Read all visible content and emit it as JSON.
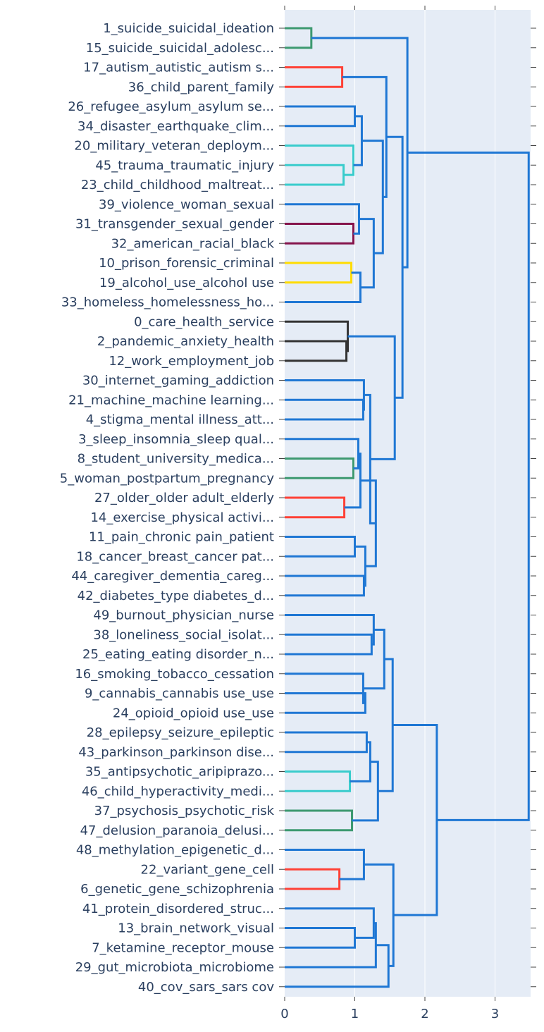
{
  "chart_data": {
    "type": "dendrogram",
    "orientation": "horizontal",
    "xlim": [
      0,
      3.5
    ],
    "x_ticks": [
      0,
      1,
      2,
      3
    ],
    "x_tick_labels": [
      "0",
      "1",
      "2",
      "3"
    ],
    "plot_background": "#e5ecf6",
    "leaves": [
      "1_suicide_suicidal_ideation",
      "15_suicide_suicidal_adolesc...",
      "17_autism_autistic_autism s...",
      "36_child_parent_family",
      "26_refugee_asylum_asylum se...",
      "34_disaster_earthquake_clim...",
      "20_military_veteran_deploym...",
      "45_trauma_traumatic_injury",
      "23_child_childhood_maltreat...",
      "39_violence_woman_sexual",
      "31_transgender_sexual_gender",
      "32_american_racial_black",
      "10_prison_forensic_criminal",
      "19_alcohol_use_alcohol use",
      "33_homeless_homelessness_ho...",
      "0_care_health_service",
      "2_pandemic_anxiety_health",
      "12_work_employment_job",
      "30_internet_gaming_addiction",
      "21_machine_machine learning...",
      "4_stigma_mental illness_att...",
      "3_sleep_insomnia_sleep qual...",
      "8_student_university_medica...",
      "5_woman_postpartum_pregnancy",
      "27_older_older adult_elderly",
      "14_exercise_physical activi...",
      "11_pain_chronic pain_patient",
      "18_cancer_breast_cancer pat...",
      "44_caregiver_dementia_careg...",
      "42_diabetes_type diabetes_d...",
      "49_burnout_physician_nurse",
      "38_loneliness_social_isolat...",
      "25_eating_eating disorder_n...",
      "16_smoking_tobacco_cessation",
      "9_cannabis_cannabis use_use",
      "24_opioid_opioid use_use",
      "28_epilepsy_seizure_epileptic",
      "43_parkinson_parkinson dise...",
      "35_antipsychotic_aripiprazo...",
      "46_child_hyperactivity_medi...",
      "37_psychosis_psychotic_risk",
      "47_delusion_paranoia_delusi...",
      "48_methylation_epigenetic_d...",
      "22_variant_gene_cell",
      "6_genetic_gene_schizophrenia",
      "41_protein_disordered_struc...",
      "13_brain_network_visual",
      "7_ketamine_receptor_mouse",
      "29_gut_microbiota_microbiome",
      "40_cov_sars_sars cov"
    ],
    "colors": {
      "blue": "#1f77d4",
      "green": "#3d9970",
      "red": "#ff4136",
      "cyan": "#39cccc",
      "maroon": "#85144b",
      "yellow": "#ffdc00",
      "black": "#333333"
    },
    "links": [
      {
        "a": 0,
        "b": 1,
        "h": 0.38,
        "c": "green"
      },
      {
        "a": 2,
        "b": 3,
        "h": 0.82,
        "c": "red"
      },
      {
        "a": 4,
        "b": 5,
        "h": 1.0,
        "c": "blue"
      },
      {
        "a": 7,
        "b": 8,
        "h": 0.84,
        "c": "cyan"
      },
      {
        "a": 6,
        "b": 7.5,
        "b_h": 0.84,
        "h": 0.98,
        "c": "cyan"
      },
      {
        "a": 4.5,
        "a_h": 1.0,
        "b": 7.0,
        "b_h": 0.98,
        "h": 1.1,
        "c": "blue"
      },
      {
        "a": 10,
        "b": 11,
        "h": 0.98,
        "c": "maroon"
      },
      {
        "a": 9,
        "b": 10.5,
        "b_h": 0.98,
        "h": 1.06,
        "c": "blue"
      },
      {
        "a": 12,
        "b": 13,
        "h": 0.95,
        "c": "yellow"
      },
      {
        "a": 12.5,
        "a_h": 0.95,
        "b": 14,
        "h": 1.08,
        "c": "blue"
      },
      {
        "a": 9.75,
        "a_h": 1.06,
        "b": 13.25,
        "b_h": 1.08,
        "h": 1.27,
        "c": "blue"
      },
      {
        "a": 5.75,
        "a_h": 1.1,
        "b": 11.5,
        "b_h": 1.27,
        "h": 1.4,
        "c": "blue"
      },
      {
        "a": 2.5,
        "a_h": 0.82,
        "b": 8.625,
        "b_h": 1.4,
        "h": 1.45,
        "c": "blue"
      },
      {
        "a": 16,
        "b": 17,
        "h": 0.88,
        "c": "black"
      },
      {
        "a": 15,
        "b": 16.5,
        "b_h": 0.88,
        "h": 0.9,
        "c": "black"
      },
      {
        "a": 19,
        "b": 20,
        "h": 1.12,
        "c": "blue"
      },
      {
        "a": 18,
        "b": 19.5,
        "b_h": 1.12,
        "h": 1.13,
        "c": "blue"
      },
      {
        "a": 22,
        "b": 23,
        "h": 0.98,
        "c": "green"
      },
      {
        "a": 21,
        "b": 22.5,
        "b_h": 0.98,
        "h": 1.05,
        "c": "blue"
      },
      {
        "a": 24,
        "b": 25,
        "h": 0.85,
        "c": "red"
      },
      {
        "a": 21.75,
        "a_h": 1.05,
        "b": 24.5,
        "b_h": 0.85,
        "h": 1.08,
        "c": "blue"
      },
      {
        "a": 26,
        "b": 27,
        "h": 1.0,
        "c": "blue"
      },
      {
        "a": 28,
        "b": 29,
        "h": 1.13,
        "c": "blue"
      },
      {
        "a": 26.5,
        "a_h": 1.0,
        "b": 28.5,
        "b_h": 1.13,
        "h": 1.15,
        "c": "blue"
      },
      {
        "a": 23.125,
        "a_h": 1.08,
        "b": 27.5,
        "b_h": 1.15,
        "h": 1.3,
        "c": "blue"
      },
      {
        "a": 18.75,
        "a_h": 1.13,
        "b": 25.3125,
        "b_h": 1.3,
        "h": 1.22,
        "c": "blue"
      },
      {
        "a": 15.75,
        "a_h": 0.9,
        "b": 22.03,
        "b_h": 1.22,
        "h": 1.57,
        "c": "blue"
      },
      {
        "a": 5.56,
        "a_h": 1.45,
        "b": 18.89,
        "b_h": 1.57,
        "h": 1.68,
        "c": "blue"
      },
      {
        "a": 0.5,
        "a_h": 0.38,
        "b": 12.22,
        "b_h": 1.68,
        "h": 1.75,
        "c": "blue"
      },
      {
        "a": 31,
        "b": 32,
        "h": 1.24,
        "c": "blue"
      },
      {
        "a": 30,
        "b": 31.5,
        "b_h": 1.24,
        "h": 1.27,
        "c": "blue"
      },
      {
        "a": 34,
        "b": 35,
        "h": 1.15,
        "c": "blue"
      },
      {
        "a": 33,
        "b": 34.5,
        "b_h": 1.15,
        "h": 1.12,
        "c": "blue"
      },
      {
        "a": 30.75,
        "a_h": 1.27,
        "b": 33.75,
        "b_h": 1.12,
        "h": 1.42,
        "c": "blue"
      },
      {
        "a": 36,
        "b": 37,
        "h": 1.17,
        "c": "blue"
      },
      {
        "a": 38,
        "b": 39,
        "h": 0.93,
        "c": "cyan"
      },
      {
        "a": 36.5,
        "a_h": 1.17,
        "b": 38.5,
        "b_h": 0.93,
        "h": 1.22,
        "c": "blue"
      },
      {
        "a": 40,
        "b": 41,
        "h": 0.96,
        "c": "green"
      },
      {
        "a": 37.5,
        "a_h": 1.22,
        "b": 40.5,
        "b_h": 0.96,
        "h": 1.33,
        "c": "blue"
      },
      {
        "a": 32.25,
        "a_h": 1.42,
        "b": 39.0,
        "b_h": 1.33,
        "h": 1.54,
        "c": "blue"
      },
      {
        "a": 43,
        "b": 44,
        "h": 0.78,
        "c": "red"
      },
      {
        "a": 42,
        "b": 43.5,
        "b_h": 0.78,
        "h": 1.13,
        "c": "blue"
      },
      {
        "a": 46,
        "b": 47,
        "h": 1.0,
        "c": "blue"
      },
      {
        "a": 45,
        "b": 46.5,
        "b_h": 1.0,
        "h": 1.27,
        "c": "blue"
      },
      {
        "a": 45.75,
        "a_h": 1.27,
        "b": 48,
        "h": 1.3,
        "c": "blue"
      },
      {
        "a": 46.875,
        "a_h": 1.3,
        "b": 49,
        "h": 1.48,
        "c": "blue"
      },
      {
        "a": 42.75,
        "a_h": 1.13,
        "b": 47.94,
        "b_h": 1.48,
        "h": 1.55,
        "c": "blue"
      },
      {
        "a": 35.62,
        "a_h": 1.54,
        "b": 45.34,
        "b_h": 1.55,
        "h": 2.17,
        "c": "blue"
      },
      {
        "a": 6.36,
        "a_h": 1.75,
        "b": 40.48,
        "b_h": 2.17,
        "h": 3.48,
        "c": "blue"
      }
    ]
  }
}
